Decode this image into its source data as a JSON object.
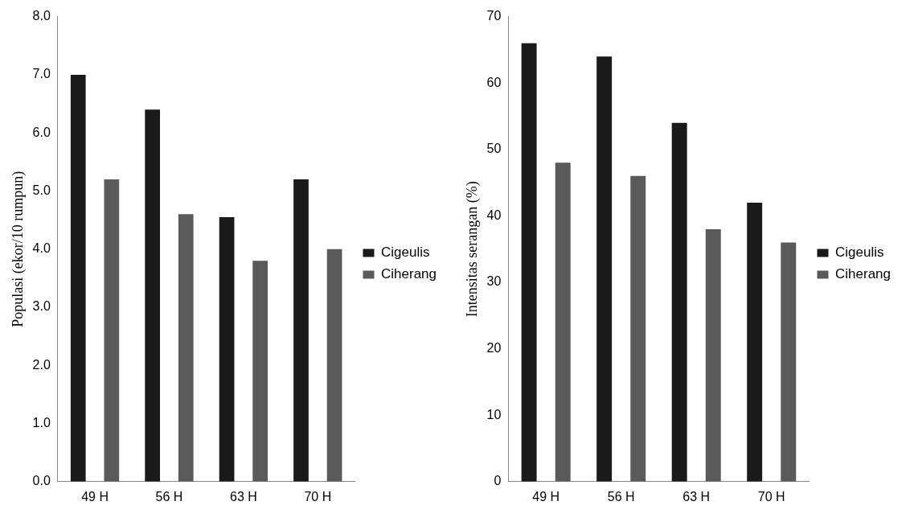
{
  "chart_data": [
    {
      "type": "bar",
      "ylabel": "Populasi (ekor/10 rumpun)",
      "categories": [
        "49 H",
        "56 H",
        "63 H",
        "70 H"
      ],
      "series": [
        {
          "name": "Cigeulis",
          "color": "#1a1a1a",
          "values": [
            7.0,
            6.4,
            4.55,
            5.2
          ]
        },
        {
          "name": "Ciherang",
          "color": "#5a5a5a",
          "values": [
            5.2,
            4.6,
            3.8,
            4.0
          ]
        }
      ],
      "ylim": [
        0,
        8
      ],
      "yticks": [
        {
          "value": 0,
          "label": "0.0"
        },
        {
          "value": 1,
          "label": "1.0"
        },
        {
          "value": 2,
          "label": "2.0"
        },
        {
          "value": 3,
          "label": "3.0"
        },
        {
          "value": 4,
          "label": "4.0"
        },
        {
          "value": 5,
          "label": "5.0"
        },
        {
          "value": 6,
          "label": "6.0"
        },
        {
          "value": 7,
          "label": "7.0"
        },
        {
          "value": 8,
          "label": "8.0"
        }
      ],
      "grid": false,
      "legend": "right"
    },
    {
      "type": "bar",
      "ylabel": "Intensitas serangan (%)",
      "categories": [
        "49 H",
        "56 H",
        "63 H",
        "70 H"
      ],
      "series": [
        {
          "name": "Cigeulis",
          "color": "#1a1a1a",
          "values": [
            66,
            64,
            54,
            42
          ]
        },
        {
          "name": "Ciherang",
          "color": "#5a5a5a",
          "values": [
            48,
            46,
            38,
            36
          ]
        }
      ],
      "ylim": [
        0,
        70
      ],
      "yticks": [
        0,
        10,
        20,
        30,
        40,
        50,
        60,
        70
      ],
      "grid": false,
      "legend": "right"
    }
  ]
}
